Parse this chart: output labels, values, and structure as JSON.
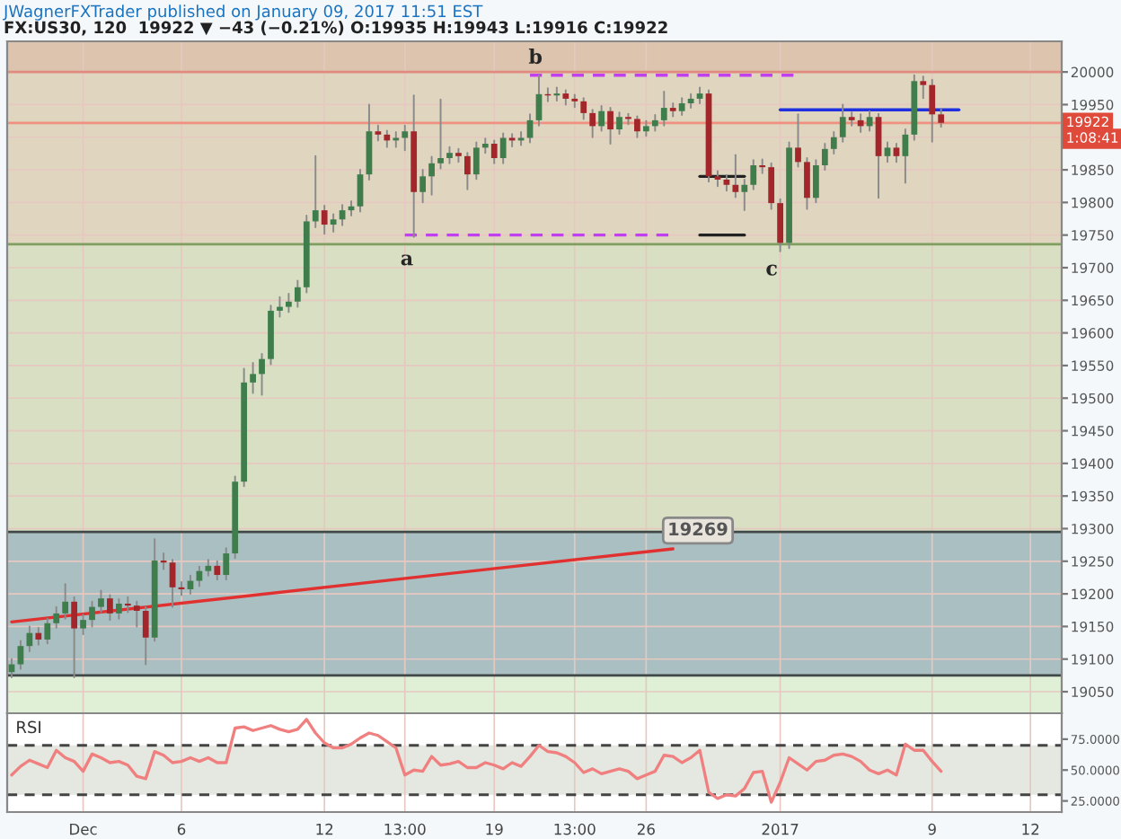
{
  "chart_data": [
    {
      "type": "candlestick",
      "title": "JWagnerFXTrader published on January 09, 2017 11:51 EST",
      "subtitle": "FX:US30, 120  19922 ▼ −43 (−0.21%) O:19935 H:19943 L:19916 C:19922",
      "categories": [
        null,
        null,
        null,
        null,
        null,
        null,
        null,
        null,
        null,
        null,
        null,
        null,
        null,
        null,
        null,
        null,
        null,
        null,
        null,
        null,
        null,
        null,
        null,
        null,
        null,
        null,
        null,
        null,
        null,
        null,
        null,
        null,
        null,
        null,
        null,
        null,
        null,
        null,
        null,
        null,
        null,
        null,
        null,
        null,
        null,
        null,
        null,
        null,
        null,
        null,
        null,
        null,
        null,
        null,
        null,
        null,
        null,
        null,
        null,
        null,
        null,
        null,
        null,
        null,
        null,
        null,
        null,
        null,
        null,
        null,
        null,
        null,
        null,
        null,
        null,
        null,
        null,
        null,
        null,
        null,
        null,
        null,
        null,
        null,
        null,
        null,
        null,
        null,
        null,
        null,
        null,
        null,
        null,
        null,
        null,
        null,
        null,
        null,
        null,
        null,
        null,
        null,
        null,
        null,
        null,
        null,
        null,
        null,
        null,
        null,
        null,
        null,
        null,
        null,
        null,
        null,
        null,
        null
      ],
      "ohlc": [
        [
          19080,
          19100,
          19072,
          19092
        ],
        [
          19092,
          19128,
          19085,
          19120
        ],
        [
          19120,
          19150,
          19112,
          19140
        ],
        [
          19140,
          19148,
          19122,
          19130
        ],
        [
          19130,
          19162,
          19124,
          19155
        ],
        [
          19155,
          19180,
          19148,
          19170
        ],
        [
          19170,
          19215,
          19162,
          19188
        ],
        [
          19188,
          19195,
          19072,
          19147
        ],
        [
          19147,
          19168,
          19138,
          19160
        ],
        [
          19160,
          19188,
          19150,
          19180
        ],
        [
          19180,
          19205,
          19172,
          19193
        ],
        [
          19193,
          19198,
          19160,
          19170
        ],
        [
          19170,
          19192,
          19162,
          19185
        ],
        [
          19185,
          19195,
          19172,
          19182
        ],
        [
          19182,
          19188,
          19150,
          19174
        ],
        [
          19174,
          19180,
          19092,
          19133
        ],
        [
          19133,
          19284,
          19128,
          19251
        ],
        [
          19251,
          19262,
          19238,
          19248
        ],
        [
          19248,
          19252,
          19180,
          19210
        ],
        [
          19210,
          19218,
          19198,
          19207
        ],
        [
          19207,
          19228,
          19200,
          19220
        ],
        [
          19220,
          19242,
          19212,
          19235
        ],
        [
          19235,
          19252,
          19228,
          19243
        ],
        [
          19243,
          19250,
          19222,
          19229
        ],
        [
          19229,
          19270,
          19222,
          19262
        ],
        [
          19262,
          19380,
          19255,
          19372
        ],
        [
          19372,
          19545,
          19365,
          19524
        ],
        [
          19524,
          19554,
          19508,
          19537
        ],
        [
          19537,
          19568,
          19505,
          19560
        ],
        [
          19560,
          19642,
          19552,
          19634
        ],
        [
          19634,
          19655,
          19625,
          19640
        ],
        [
          19640,
          19660,
          19632,
          19648
        ],
        [
          19648,
          19680,
          19640,
          19670
        ],
        [
          19670,
          19780,
          19662,
          19771
        ],
        [
          19771,
          19871,
          19762,
          19788
        ],
        [
          19788,
          19795,
          19752,
          19766
        ],
        [
          19766,
          19782,
          19755,
          19774
        ],
        [
          19774,
          19796,
          19765,
          19788
        ],
        [
          19788,
          19802,
          19780,
          19794
        ],
        [
          19794,
          19850,
          19786,
          19843
        ],
        [
          19843,
          19950,
          19835,
          19909
        ],
        [
          19909,
          19918,
          19895,
          19904
        ],
        [
          19904,
          19910,
          19885,
          19895
        ],
        [
          19895,
          19908,
          19885,
          19899
        ],
        [
          19899,
          19918,
          19880,
          19909
        ],
        [
          19909,
          19964,
          19747,
          19816
        ],
        [
          19816,
          19850,
          19800,
          19840
        ],
        [
          19840,
          19870,
          19812,
          19860
        ],
        [
          19860,
          19958,
          19852,
          19868
        ],
        [
          19868,
          19885,
          19860,
          19876
        ],
        [
          19876,
          19882,
          19862,
          19871
        ],
        [
          19871,
          19876,
          19820,
          19843
        ],
        [
          19843,
          19892,
          19836,
          19884
        ],
        [
          19884,
          19898,
          19876,
          19890
        ],
        [
          19890,
          19895,
          19860,
          19868
        ],
        [
          19868,
          19906,
          19860,
          19899
        ],
        [
          19899,
          19905,
          19886,
          19895
        ],
        [
          19895,
          19908,
          19888,
          19899
        ],
        [
          19899,
          19935,
          19892,
          19926
        ],
        [
          19926,
          19995,
          19918,
          19966
        ],
        [
          19966,
          19975,
          19955,
          19964
        ],
        [
          19964,
          19976,
          19956,
          19967
        ],
        [
          19967,
          19972,
          19950,
          19959
        ],
        [
          19959,
          19965,
          19946,
          19955
        ],
        [
          19955,
          19960,
          19928,
          19937
        ],
        [
          19937,
          19942,
          19900,
          19917
        ],
        [
          19917,
          19948,
          19910,
          19940
        ],
        [
          19940,
          19945,
          19890,
          19912
        ],
        [
          19912,
          19938,
          19905,
          19931
        ],
        [
          19931,
          19936,
          19920,
          19928
        ],
        [
          19928,
          19932,
          19900,
          19909
        ],
        [
          19909,
          19925,
          19902,
          19917
        ],
        [
          19917,
          19934,
          19910,
          19926
        ],
        [
          19926,
          19970,
          19918,
          19945
        ],
        [
          19945,
          19952,
          19932,
          19940
        ],
        [
          19940,
          19960,
          19934,
          19952
        ],
        [
          19952,
          19966,
          19945,
          19959
        ],
        [
          19959,
          19976,
          19952,
          19967
        ],
        [
          19967,
          19972,
          19832,
          19840
        ],
        [
          19840,
          19848,
          19825,
          19835
        ],
        [
          19835,
          19842,
          19818,
          19827
        ],
        [
          19827,
          19873,
          19808,
          19816
        ],
        [
          19816,
          19835,
          19788,
          19827
        ],
        [
          19827,
          19865,
          19820,
          19857
        ],
        [
          19857,
          19866,
          19845,
          19854
        ],
        [
          19854,
          19860,
          19790,
          19799
        ],
        [
          19799,
          19805,
          19725,
          19738
        ],
        [
          19738,
          19892,
          19730,
          19884
        ],
        [
          19884,
          19935,
          19855,
          19862
        ],
        [
          19862,
          19868,
          19790,
          19807
        ],
        [
          19807,
          19865,
          19800,
          19857
        ],
        [
          19857,
          19890,
          19850,
          19882
        ],
        [
          19882,
          19908,
          19875,
          19900
        ],
        [
          19900,
          19950,
          19893,
          19931
        ],
        [
          19931,
          19938,
          19918,
          19926
        ],
        [
          19926,
          19935,
          19908,
          19917
        ],
        [
          19917,
          19940,
          19910,
          19931
        ],
        [
          19931,
          19936,
          19807,
          19871
        ],
        [
          19871,
          19892,
          19862,
          19884
        ],
        [
          19884,
          19890,
          19862,
          19871
        ],
        [
          19871,
          19912,
          19830,
          19904
        ],
        [
          19904,
          19995,
          19896,
          19986
        ],
        [
          19986,
          19993,
          19960,
          19980
        ],
        [
          19980,
          19988,
          19893,
          19935
        ],
        [
          19935,
          19943,
          19916,
          19922
        ],
        null,
        null,
        null,
        null,
        null,
        null,
        null,
        null,
        null,
        null,
        null,
        null,
        null
      ],
      "colors": [
        "#3f7d4c",
        "#3f7d4c",
        "#3f7d4c",
        "#a3262a",
        "#3f7d4c",
        "#3f7d4c",
        "#3f7d4c",
        "#a3262a",
        "#3f7d4c",
        "#3f7d4c",
        "#3f7d4c",
        "#a3262a",
        "#3f7d4c",
        "#a3262a",
        "#a3262a",
        "#a3262a",
        "#3f7d4c",
        "#a3262a",
        "#a3262a",
        "#a3262a",
        "#3f7d4c",
        "#3f7d4c",
        "#3f7d4c",
        "#a3262a",
        "#3f7d4c",
        "#3f7d4c",
        "#3f7d4c",
        "#3f7d4c",
        "#3f7d4c",
        "#3f7d4c",
        "#3f7d4c",
        "#3f7d4c",
        "#3f7d4c",
        "#3f7d4c",
        "#3f7d4c",
        "#a3262a",
        "#3f7d4c",
        "#3f7d4c",
        "#3f7d4c",
        "#3f7d4c",
        "#3f7d4c",
        "#a3262a",
        "#a3262a",
        "#3f7d4c",
        "#3f7d4c",
        "#a3262a",
        "#3f7d4c",
        "#3f7d4c",
        "#3f7d4c",
        "#3f7d4c",
        "#a3262a",
        "#a3262a",
        "#3f7d4c",
        "#3f7d4c",
        "#a3262a",
        "#3f7d4c",
        "#a3262a",
        "#3f7d4c",
        "#3f7d4c",
        "#3f7d4c",
        "#a3262a",
        "#3f7d4c",
        "#a3262a",
        "#a3262a",
        "#a3262a",
        "#a3262a",
        "#3f7d4c",
        "#a3262a",
        "#3f7d4c",
        "#a3262a",
        "#a3262a",
        "#3f7d4c",
        "#3f7d4c",
        "#3f7d4c",
        "#a3262a",
        "#3f7d4c",
        "#3f7d4c",
        "#3f7d4c",
        "#a3262a",
        "#a3262a",
        "#a3262a",
        "#a3262a",
        "#3f7d4c",
        "#3f7d4c",
        "#a3262a",
        "#a3262a",
        "#a3262a",
        "#3f7d4c",
        "#a3262a",
        "#a3262a",
        "#3f7d4c",
        "#3f7d4c",
        "#3f7d4c",
        "#3f7d4c",
        "#a3262a",
        "#a3262a",
        "#3f7d4c",
        "#a3262a",
        "#3f7d4c",
        "#a3262a",
        "#3f7d4c",
        "#3f7d4c",
        "#a3262a",
        "#a3262a",
        "#a3262a",
        null,
        null,
        null,
        null,
        null,
        null,
        null,
        null,
        null,
        null,
        null,
        null,
        null
      ],
      "series": [
        {
          "type": "line",
          "color": "#e03030",
          "values": [
            19157,
            null,
            null,
            null,
            null,
            null,
            null,
            null,
            null,
            null,
            null,
            null,
            null,
            null,
            null,
            null,
            null,
            null,
            null,
            null,
            null,
            null,
            null,
            null,
            null,
            null,
            null,
            null,
            null,
            null,
            null,
            null,
            null,
            null,
            null,
            null,
            null,
            null,
            null,
            null,
            null,
            null,
            null,
            null,
            null,
            null,
            null,
            null,
            null,
            null,
            null,
            null,
            null,
            null,
            null,
            null,
            null,
            null,
            null,
            null,
            null,
            null,
            null,
            null,
            null,
            null,
            null,
            null,
            null,
            null,
            null,
            null,
            null,
            null,
            19269,
            null,
            null,
            null,
            null,
            null,
            null,
            null,
            null,
            null,
            null,
            null,
            null,
            null,
            null,
            null,
            null,
            null,
            null,
            null,
            null,
            null,
            null,
            null,
            null,
            null,
            null,
            null,
            null,
            null,
            null,
            null,
            null,
            null,
            null,
            null,
            null,
            null,
            null,
            null,
            null,
            null,
            null,
            null
          ]
        },
        {
          "type": "line",
          "color": "#c040f0",
          "line_style": "dashed",
          "values": [
            null,
            null,
            null,
            null,
            null,
            null,
            null,
            null,
            null,
            null,
            null,
            null,
            null,
            null,
            null,
            null,
            null,
            null,
            null,
            null,
            null,
            null,
            null,
            null,
            null,
            null,
            null,
            null,
            null,
            null,
            null,
            null,
            null,
            null,
            null,
            null,
            null,
            null,
            null,
            null,
            null,
            null,
            null,
            null,
            19750,
            null,
            null,
            null,
            null,
            null,
            null,
            null,
            null,
            null,
            null,
            null,
            null,
            null,
            null,
            null,
            null,
            null,
            null,
            null,
            null,
            null,
            null,
            null,
            null,
            null,
            null,
            null,
            null,
            null,
            19750,
            null,
            null,
            null,
            null,
            null,
            null,
            null,
            null,
            null,
            null,
            null,
            null,
            null,
            null,
            null,
            null,
            null,
            null,
            null,
            null,
            null,
            null,
            null,
            null,
            null,
            null,
            null,
            null,
            null,
            null,
            null,
            null,
            null,
            null,
            null,
            null,
            null,
            null,
            null,
            null,
            null,
            null,
            null
          ]
        },
        {
          "type": "line",
          "color": "#c040f0",
          "line_style": "dashed",
          "values": [
            null,
            null,
            null,
            null,
            null,
            null,
            null,
            null,
            null,
            null,
            null,
            null,
            null,
            null,
            null,
            null,
            null,
            null,
            null,
            null,
            null,
            null,
            null,
            null,
            null,
            null,
            null,
            null,
            null,
            null,
            null,
            null,
            null,
            null,
            null,
            null,
            null,
            null,
            null,
            null,
            null,
            null,
            null,
            null,
            null,
            null,
            null,
            null,
            null,
            null,
            null,
            null,
            null,
            null,
            null,
            null,
            null,
            null,
            19995,
            null,
            null,
            null,
            null,
            null,
            null,
            null,
            null,
            null,
            null,
            null,
            null,
            null,
            null,
            null,
            null,
            null,
            null,
            null,
            null,
            null,
            null,
            null,
            null,
            null,
            null,
            null,
            null,
            null,
            19995,
            null,
            null,
            null,
            null,
            null,
            null,
            null,
            null,
            null,
            null,
            null,
            null,
            null,
            null,
            null,
            null,
            null,
            null,
            null,
            null,
            null,
            null,
            null,
            null,
            null,
            null,
            null,
            null,
            null
          ]
        },
        {
          "type": "line",
          "color": "#2030e0",
          "values": [
            null,
            null,
            null,
            null,
            null,
            null,
            null,
            null,
            null,
            null,
            null,
            null,
            null,
            null,
            null,
            null,
            null,
            null,
            null,
            null,
            null,
            null,
            null,
            null,
            null,
            null,
            null,
            null,
            null,
            null,
            null,
            null,
            null,
            null,
            null,
            null,
            null,
            null,
            null,
            null,
            null,
            null,
            null,
            null,
            null,
            null,
            null,
            null,
            null,
            null,
            null,
            null,
            null,
            null,
            null,
            null,
            null,
            null,
            null,
            null,
            null,
            null,
            null,
            null,
            null,
            null,
            null,
            null,
            null,
            null,
            null,
            null,
            null,
            null,
            null,
            null,
            null,
            null,
            null,
            null,
            null,
            null,
            null,
            null,
            null,
            null,
            19942,
            null,
            null,
            null,
            null,
            null,
            null,
            null,
            null,
            null,
            null,
            null,
            null,
            null,
            null,
            null,
            null,
            null,
            null,
            null,
            19942,
            null,
            null,
            null,
            null,
            null,
            null,
            null,
            null,
            null,
            null,
            null
          ]
        },
        {
          "type": "line",
          "color": "#222222",
          "values": [
            null,
            null,
            null,
            null,
            null,
            null,
            null,
            null,
            null,
            null,
            null,
            null,
            null,
            null,
            null,
            null,
            null,
            null,
            null,
            null,
            null,
            null,
            null,
            null,
            null,
            null,
            null,
            null,
            null,
            null,
            null,
            null,
            null,
            null,
            null,
            null,
            null,
            null,
            null,
            null,
            null,
            null,
            null,
            null,
            null,
            null,
            null,
            null,
            null,
            null,
            null,
            null,
            null,
            null,
            null,
            null,
            null,
            null,
            null,
            null,
            null,
            null,
            null,
            null,
            null,
            null,
            null,
            null,
            null,
            null,
            null,
            null,
            null,
            null,
            null,
            null,
            null,
            19750,
            null,
            null,
            null,
            null,
            19750,
            null,
            null,
            null,
            null,
            null,
            null,
            null,
            null,
            null,
            null,
            null,
            null,
            null,
            null,
            null,
            null,
            null,
            null,
            null,
            null,
            null,
            null,
            null,
            null,
            null,
            null,
            null,
            null,
            null,
            null,
            null,
            null,
            null,
            null,
            null
          ]
        },
        {
          "type": "line",
          "color": "#222222",
          "values": [
            null,
            null,
            null,
            null,
            null,
            null,
            null,
            null,
            null,
            null,
            null,
            null,
            null,
            null,
            null,
            null,
            null,
            null,
            null,
            null,
            null,
            null,
            null,
            null,
            null,
            null,
            null,
            null,
            null,
            null,
            null,
            null,
            null,
            null,
            null,
            null,
            null,
            null,
            null,
            null,
            null,
            null,
            null,
            null,
            null,
            null,
            null,
            null,
            null,
            null,
            null,
            null,
            null,
            null,
            null,
            null,
            null,
            null,
            null,
            null,
            null,
            null,
            null,
            null,
            null,
            null,
            null,
            null,
            null,
            null,
            null,
            null,
            null,
            null,
            null,
            null,
            null,
            19840,
            null,
            null,
            null,
            null,
            19840,
            null,
            null,
            null,
            null,
            null,
            null,
            null,
            null,
            null,
            null,
            null,
            null,
            null,
            null,
            null,
            null,
            null,
            null,
            null,
            null,
            null,
            null,
            null,
            null,
            null,
            null,
            null,
            null,
            null,
            null,
            null,
            null,
            null,
            null,
            null
          ]
        }
      ],
      "ylim": [
        19017,
        20047
      ],
      "yticks": [
        19050,
        19100,
        19150,
        19200,
        19250,
        19300,
        19350,
        19400,
        19450,
        19500,
        19550,
        19600,
        19650,
        19700,
        19750,
        19800,
        19850,
        {
          "value": 19900,
          "label": null
        },
        19950,
        20000
      ],
      "tick_labels": "y",
      "grid": true,
      "bands": [
        {
          "axis": "y",
          "from": 20000,
          "to": 20047,
          "color": "#dcc4ae"
        },
        {
          "axis": "y",
          "from": 19736,
          "to": 20000,
          "color": "#e0d6bf"
        },
        {
          "axis": "y",
          "from": 19075,
          "to": 19736,
          "color": "#d8dfc3"
        },
        {
          "axis": "y",
          "from": 19017,
          "to": 19075,
          "color": "#dff0d6"
        },
        {
          "axis": "y",
          "from": 19075,
          "to": 19295,
          "color": "#aabfc2"
        }
      ],
      "ref_lines": [
        {
          "axis": "y",
          "value": 20000,
          "color": "#e08a80"
        },
        {
          "axis": "y",
          "value": 19922,
          "color": "#f09080",
          "label": "19922"
        },
        {
          "axis": "y",
          "value": 19736,
          "color": "#7f9f60"
        },
        {
          "axis": "y",
          "value": 19295,
          "color": "#404848"
        },
        {
          "axis": "y",
          "value": 19075,
          "color": "#404848"
        }
      ],
      "annotations": [
        "a",
        "b",
        "c",
        "19269",
        "1:08:41"
      ]
    },
    {
      "type": "line",
      "title": "RSI",
      "categories": [
        null,
        null,
        null,
        null,
        null,
        null,
        null,
        null,
        "Dec",
        null,
        null,
        null,
        null,
        null,
        null,
        null,
        null,
        null,
        null,
        "6",
        null,
        null,
        null,
        null,
        null,
        null,
        null,
        null,
        null,
        null,
        null,
        null,
        null,
        null,
        null,
        "12",
        null,
        null,
        null,
        null,
        null,
        null,
        null,
        null,
        "13:00",
        null,
        null,
        null,
        null,
        null,
        null,
        null,
        null,
        null,
        "19",
        null,
        null,
        null,
        null,
        null,
        null,
        null,
        null,
        "13:00",
        null,
        null,
        null,
        null,
        null,
        null,
        null,
        "26",
        null,
        null,
        null,
        null,
        null,
        null,
        null,
        null,
        null,
        null,
        null,
        null,
        null,
        null,
        "2017",
        null,
        null,
        null,
        null,
        null,
        null,
        null,
        null,
        null,
        null,
        null,
        null,
        null,
        null,
        null,
        null,
        "9",
        null,
        null,
        null,
        null,
        null,
        null,
        null,
        null,
        null,
        null,
        "12",
        null,
        null,
        null
      ],
      "series": [
        {
          "color": "#f08080",
          "values": [
            46,
            53,
            58,
            55,
            52,
            66,
            60,
            57,
            49,
            63,
            60,
            56,
            57,
            54,
            45,
            43,
            65,
            62,
            56,
            57,
            60,
            57,
            60,
            56,
            56,
            84,
            85,
            82,
            84,
            86,
            83,
            81,
            83,
            91,
            80,
            72,
            68,
            68,
            71,
            76,
            80,
            78,
            73,
            68,
            46,
            50,
            49,
            61,
            54,
            55,
            57,
            52,
            52,
            56,
            54,
            51,
            56,
            53,
            61,
            70,
            65,
            64,
            61,
            56,
            48,
            51,
            47,
            49,
            51,
            49,
            43,
            46,
            49,
            62,
            61,
            56,
            60,
            66,
            32,
            27,
            30,
            29,
            35,
            48,
            49,
            24,
            40,
            60,
            55,
            50,
            57,
            58,
            62,
            63,
            61,
            57,
            50,
            47,
            50,
            46,
            71,
            66,
            66,
            57,
            49,
            null,
            null,
            null,
            null,
            null,
            null,
            null,
            null,
            null,
            null,
            null,
            null,
            null
          ]
        }
      ],
      "ylim": [
        16,
        96
      ],
      "yticks": [
        {
          "value": 25,
          "label": "25.0000"
        },
        {
          "value": 50,
          "label": "50.0000"
        },
        {
          "value": 75,
          "label": "75.0000"
        }
      ],
      "grid": "x",
      "bands": [
        {
          "axis": "y",
          "from": 30,
          "to": 70,
          "color": "#e4e8e0"
        }
      ],
      "ref_lines": [
        {
          "axis": "y",
          "value": 70,
          "color": "#444444",
          "line_style": "dashed"
        },
        {
          "axis": "y",
          "value": 30,
          "color": "#444444",
          "line_style": "dashed"
        }
      ]
    }
  ]
}
